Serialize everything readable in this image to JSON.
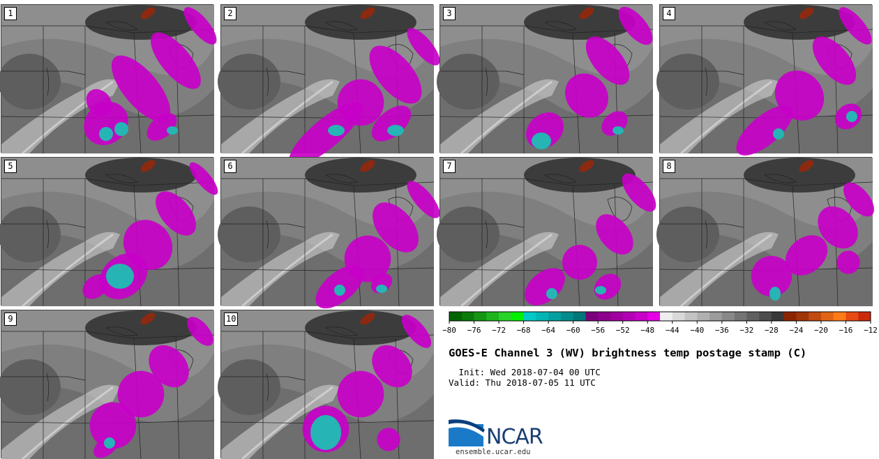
{
  "panels": [
    {
      "label": "1"
    },
    {
      "label": "2"
    },
    {
      "label": "3"
    },
    {
      "label": "4"
    },
    {
      "label": "5"
    },
    {
      "label": "6"
    },
    {
      "label": "7"
    },
    {
      "label": "8"
    },
    {
      "label": "9"
    },
    {
      "label": "10"
    }
  ],
  "colorbar": {
    "tick_labels": [
      "−80",
      "−76",
      "−72",
      "−68",
      "−64",
      "−60",
      "−56",
      "−52",
      "−48",
      "−44",
      "−40",
      "−36",
      "−32",
      "−28",
      "−24",
      "−20",
      "−16",
      "−12"
    ],
    "colors": [
      "#006400",
      "#0a7a0a",
      "#149614",
      "#1eb41e",
      "#28d228",
      "#00f000",
      "#00c8c8",
      "#00b4b4",
      "#00a0a0",
      "#008c8c",
      "#007878",
      "#7a007a",
      "#8c008c",
      "#a000a0",
      "#b400b4",
      "#c800c8",
      "#e600e6",
      "#eeeeee",
      "#d9d9d9",
      "#c4c4c4",
      "#b0b0b0",
      "#9c9c9c",
      "#888888",
      "#747474",
      "#606060",
      "#4c4c4c",
      "#383838",
      "#8b2500",
      "#a0350a",
      "#c04a10",
      "#e06414",
      "#ff7a1a",
      "#e84a14",
      "#cc2a0a"
    ]
  },
  "title": "GOES-E Channel 3 (WV) brightness temp postage stamp (C)",
  "init_line": " Init: Wed 2018-07-04 00 UTC",
  "valid_line": "Valid: Thu 2018-07-05 11 UTC",
  "logo": {
    "text": "NCAR",
    "url": "ensemble.ucar.edu"
  }
}
